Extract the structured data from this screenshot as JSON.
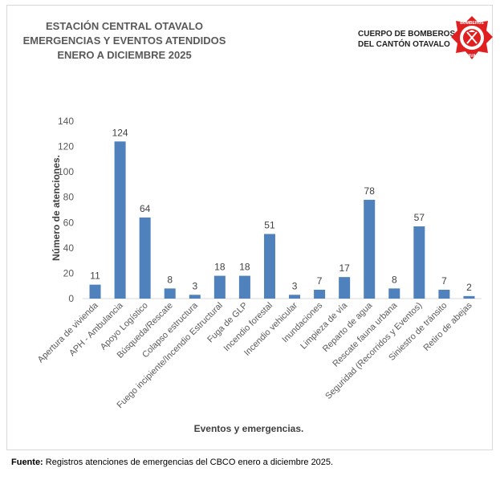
{
  "header": {
    "title_lines": [
      "ESTACIÓN CENTRAL OTAVALO",
      "EMERGENCIAS Y EVENTOS ATENDIDOS",
      "ENERO A DICIEMBRE 2025"
    ],
    "org_lines": [
      "CUERPO DE BOMBEROS",
      "DEL CANTÓN OTAVALO"
    ],
    "logo_top_text": "BOMBEROS",
    "logo_bottom_text": "OTAVALO"
  },
  "chart_data": {
    "type": "bar",
    "title": "ESTACIÓN CENTRAL OTAVALO EMERGENCIAS Y EVENTOS ATENDIDOS ENERO A DICIEMBRE 2025",
    "xlabel": "Eventos y emergencias.",
    "ylabel": "Número de atenciones.",
    "ylim": [
      0,
      140
    ],
    "yticks": [
      0,
      20,
      40,
      60,
      80,
      100,
      120,
      140
    ],
    "grid": false,
    "legend": "none",
    "bar_color": "#4f81bd",
    "categories": [
      "Apertura de vivienda",
      "APH - Ambulancia",
      "Apoyo Logístico",
      "Búsqueda/Rescate",
      "Colapso estructura",
      "Fuego incipiente/Incendio Estructural",
      "Fuga de GLP",
      "Incendio forestal",
      "Incendio vehicular",
      "Inundaciones",
      "Limpieza de vía",
      "Reparto de agua",
      "Rescate fauna urbana",
      "Seguridad (Recorridos y Eventos)",
      "Siniestro de tránsito",
      "Retiro de abejas"
    ],
    "values": [
      11,
      124,
      64,
      8,
      3,
      18,
      18,
      51,
      3,
      7,
      17,
      78,
      8,
      57,
      7,
      2
    ]
  },
  "footer": {
    "source_label": "Fuente:",
    "source_text": " Registros atenciones de emergencias del CBCO enero a diciembre 2025."
  },
  "colors": {
    "logo_red": "#e02020",
    "bar": "#4f81bd"
  }
}
